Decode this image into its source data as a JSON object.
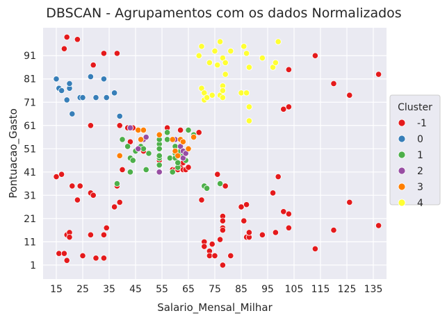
{
  "chart_data": {
    "type": "scatter",
    "title": "DBSCAN - Agrupamentos com os dados Normalizados",
    "xlabel": "Salario_Mensal_Milhar",
    "ylabel": "Pontuacao_Gasto",
    "xlim": [
      10,
      140
    ],
    "ylim": [
      -5,
      103
    ],
    "xticks": [
      15,
      25,
      35,
      45,
      55,
      65,
      75,
      85,
      95,
      105,
      115,
      125,
      135
    ],
    "yticks": [
      1,
      11,
      21,
      31,
      41,
      51,
      61,
      71,
      81,
      91
    ],
    "grid": true,
    "background": "#eaeaf2",
    "legend": {
      "title": "Cluster",
      "placement": "right"
    },
    "series": [
      {
        "name": "-1",
        "color": "#e41a1c",
        "points": [
          [
            15,
            39
          ],
          [
            16,
            6
          ],
          [
            17,
            40
          ],
          [
            18,
            6
          ],
          [
            18,
            94
          ],
          [
            19,
            3
          ],
          [
            19,
            99
          ],
          [
            19,
            14
          ],
          [
            20,
            15
          ],
          [
            20,
            13
          ],
          [
            21,
            35
          ],
          [
            23,
            98
          ],
          [
            23,
            29
          ],
          [
            24,
            35
          ],
          [
            25,
            5
          ],
          [
            28,
            14
          ],
          [
            28,
            32
          ],
          [
            28,
            61
          ],
          [
            29,
            31
          ],
          [
            29,
            87
          ],
          [
            30,
            4
          ],
          [
            33,
            4
          ],
          [
            33,
            14
          ],
          [
            33,
            92
          ],
          [
            34,
            17
          ],
          [
            37,
            26
          ],
          [
            38,
            35
          ],
          [
            38,
            92
          ],
          [
            39,
            28
          ],
          [
            39,
            61
          ],
          [
            40,
            42
          ],
          [
            42,
            60
          ],
          [
            43,
            54
          ],
          [
            44,
            60
          ],
          [
            48,
            50
          ],
          [
            54,
            46
          ],
          [
            57,
            60
          ],
          [
            59,
            42
          ],
          [
            60,
            42
          ],
          [
            61,
            42
          ],
          [
            62,
            59
          ],
          [
            62,
            43
          ],
          [
            63,
            42
          ],
          [
            63,
            45
          ],
          [
            64,
            42
          ],
          [
            65,
            43
          ],
          [
            69,
            58
          ],
          [
            70,
            29
          ],
          [
            71,
            11
          ],
          [
            71,
            9
          ],
          [
            72,
            34
          ],
          [
            73,
            7
          ],
          [
            73,
            5
          ],
          [
            74,
            10
          ],
          [
            75,
            5
          ],
          [
            76,
            40
          ],
          [
            77,
            12
          ],
          [
            77,
            36
          ],
          [
            78,
            22
          ],
          [
            78,
            17
          ],
          [
            78,
            20
          ],
          [
            78,
            16
          ],
          [
            78,
            1
          ],
          [
            79,
            35
          ],
          [
            81,
            5
          ],
          [
            85,
            26
          ],
          [
            86,
            20
          ],
          [
            87,
            27
          ],
          [
            87,
            13
          ],
          [
            88,
            13
          ],
          [
            88,
            15
          ],
          [
            93,
            14
          ],
          [
            97,
            32
          ],
          [
            98,
            15
          ],
          [
            99,
            39
          ],
          [
            101,
            24
          ],
          [
            101,
            68
          ],
          [
            103,
            23
          ],
          [
            103,
            17
          ],
          [
            103,
            69
          ],
          [
            103,
            85
          ],
          [
            113,
            91
          ],
          [
            113,
            8
          ],
          [
            120,
            16
          ],
          [
            120,
            79
          ],
          [
            126,
            28
          ],
          [
            126,
            74
          ],
          [
            137,
            18
          ],
          [
            137,
            83
          ]
        ]
      },
      {
        "name": "0",
        "color": "#377eb8",
        "points": [
          [
            15,
            81
          ],
          [
            16,
            77
          ],
          [
            17,
            76
          ],
          [
            19,
            72
          ],
          [
            20,
            77
          ],
          [
            20,
            79
          ],
          [
            21,
            66
          ],
          [
            24,
            73
          ],
          [
            25,
            73
          ],
          [
            28,
            82
          ],
          [
            30,
            73
          ],
          [
            33,
            81
          ],
          [
            34,
            73
          ],
          [
            37,
            75
          ],
          [
            39,
            65
          ]
        ]
      },
      {
        "name": "1",
        "color": "#4daf4a",
        "points": [
          [
            38,
            36
          ],
          [
            40,
            55
          ],
          [
            42,
            52
          ],
          [
            43,
            41
          ],
          [
            43,
            47
          ],
          [
            44,
            46
          ],
          [
            45,
            50
          ],
          [
            46,
            51
          ],
          [
            47,
            52
          ],
          [
            48,
            59
          ],
          [
            48,
            51
          ],
          [
            49,
            42
          ],
          [
            50,
            49
          ],
          [
            54,
            47
          ],
          [
            54,
            53
          ],
          [
            54,
            48
          ],
          [
            54,
            44
          ],
          [
            54,
            51
          ],
          [
            54,
            55
          ],
          [
            57,
            58
          ],
          [
            57,
            55
          ],
          [
            58,
            47
          ],
          [
            59,
            41
          ],
          [
            60,
            49
          ],
          [
            60,
            52
          ],
          [
            60,
            47
          ],
          [
            61,
            43
          ],
          [
            61,
            45
          ],
          [
            62,
            48
          ],
          [
            62,
            50
          ],
          [
            64,
            46
          ],
          [
            65,
            59
          ],
          [
            67,
            57
          ],
          [
            71,
            35
          ],
          [
            72,
            34
          ],
          [
            77,
            36
          ]
        ]
      },
      {
        "name": "2",
        "color": "#984ea3",
        "points": [
          [
            43,
            60
          ],
          [
            46,
            51
          ],
          [
            48,
            55
          ],
          [
            49,
            56
          ],
          [
            54,
            41
          ],
          [
            60,
            55
          ],
          [
            62,
            52
          ],
          [
            63,
            50
          ],
          [
            63,
            47
          ],
          [
            64,
            49
          ]
        ]
      },
      {
        "name": "3",
        "color": "#ff7f00",
        "points": [
          [
            39,
            48
          ],
          [
            46,
            59
          ],
          [
            47,
            55
          ],
          [
            48,
            59
          ],
          [
            54,
            57
          ],
          [
            59,
            55
          ],
          [
            60,
            50
          ],
          [
            61,
            48
          ],
          [
            62,
            55
          ],
          [
            63,
            54
          ],
          [
            65,
            51
          ],
          [
            67,
            56
          ]
        ]
      },
      {
        "name": "4",
        "color": "#ffff33",
        "points": [
          [
            69,
            91
          ],
          [
            70,
            77
          ],
          [
            70,
            95
          ],
          [
            71,
            75
          ],
          [
            71,
            72
          ],
          [
            72,
            73
          ],
          [
            73,
            88
          ],
          [
            74,
            74
          ],
          [
            75,
            93
          ],
          [
            76,
            87
          ],
          [
            77,
            97
          ],
          [
            77,
            74
          ],
          [
            78,
            90
          ],
          [
            78,
            78
          ],
          [
            78,
            73
          ],
          [
            78,
            76
          ],
          [
            79,
            83
          ],
          [
            79,
            88
          ],
          [
            81,
            93
          ],
          [
            85,
            75
          ],
          [
            86,
            95
          ],
          [
            87,
            92
          ],
          [
            87,
            75
          ],
          [
            88,
            86
          ],
          [
            88,
            63
          ],
          [
            88,
            69
          ],
          [
            93,
            90
          ],
          [
            97,
            86
          ],
          [
            98,
            88
          ],
          [
            99,
            97
          ]
        ]
      }
    ]
  }
}
